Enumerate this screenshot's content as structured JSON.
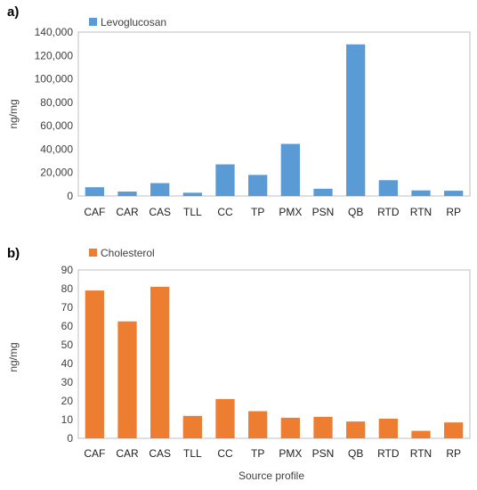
{
  "xlabel": "Source profile",
  "chart_data": [
    {
      "type": "bar",
      "panel_label": "a)",
      "categories": [
        "CAF",
        "CAR",
        "CAS",
        "TLL",
        "CC",
        "TP",
        "PMX",
        "PSN",
        "QB",
        "RTD",
        "RTN",
        "RP"
      ],
      "series": [
        {
          "name": "Levoglucosan",
          "values": [
            7500,
            3800,
            11000,
            2800,
            27000,
            18000,
            44500,
            6200,
            129500,
            13500,
            4800,
            4500
          ]
        }
      ],
      "ylabel": "ng/mg",
      "ylim": [
        0,
        140000
      ],
      "yticks": [
        0,
        20000,
        40000,
        60000,
        80000,
        100000,
        120000,
        140000
      ],
      "ytick_labels": [
        "0",
        "20,000",
        "40,000",
        "60,000",
        "80,000",
        "100,000",
        "120,000",
        "140,000"
      ],
      "color": "#5b9bd5",
      "legend": "top-left",
      "grid": false
    },
    {
      "type": "bar",
      "panel_label": "b)",
      "categories": [
        "CAF",
        "CAR",
        "CAS",
        "TLL",
        "CC",
        "TP",
        "PMX",
        "PSN",
        "QB",
        "RTD",
        "RTN",
        "RP"
      ],
      "series": [
        {
          "name": "Cholesterol",
          "values": [
            79,
            62.5,
            81,
            12,
            21,
            14.5,
            11,
            11.5,
            9,
            10.5,
            4,
            8.5
          ]
        }
      ],
      "ylabel": "ng/mg",
      "xlabel": "Source profile",
      "ylim": [
        0,
        90
      ],
      "yticks": [
        0,
        10,
        20,
        30,
        40,
        50,
        60,
        70,
        80,
        90
      ],
      "ytick_labels": [
        "0",
        "10",
        "20",
        "30",
        "40",
        "50",
        "60",
        "70",
        "80",
        "90"
      ],
      "color": "#ed7d31",
      "legend": "top-left",
      "grid": false
    }
  ]
}
